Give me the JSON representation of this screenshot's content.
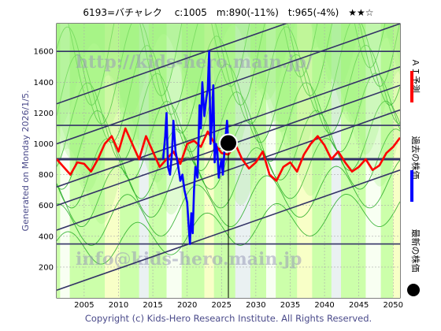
{
  "header": {
    "title": "6193=バチャレク　 c:1005　m:890(-11%)　t:965(-4%)　★★☆"
  },
  "side": {
    "generated": "Generated on Monday 2026/1/5."
  },
  "footer": {
    "copyright": "Copyright (c) Kids-Hero Research Institute. All Rights Reserved."
  },
  "watermark": {
    "top": "http://kids-hero.main.jp/",
    "bottom": "info@kids-hero.main.jp"
  },
  "legend": {
    "ai_label": "ＡＩ予測",
    "past_label": "過去の株価",
    "latest_label": "最新の株価"
  },
  "colors": {
    "ai": "#ff0000",
    "past": "#0000ff",
    "latest": "#000000",
    "band_light": "#ccffaa",
    "band_mid": "#99ee77",
    "band_line": "#22aa22",
    "channel": "#333366"
  },
  "chart_data": {
    "type": "line",
    "title": "6193=バチャレク　 c:1005　m:890(-11%)　t:965(-4%)　★★☆",
    "xlim": [
      2001,
      2051
    ],
    "ylim": [
      0,
      1780
    ],
    "xticks": [
      2005,
      2010,
      2015,
      2020,
      2025,
      2030,
      2035,
      2040,
      2045,
      2050
    ],
    "yticks": [
      200,
      400,
      600,
      800,
      1000,
      1200,
      1400,
      1600
    ],
    "grid": true,
    "current": {
      "x": 2026.0,
      "y": 1005
    },
    "horizontal_levels": [
      350,
      900,
      1120,
      1600
    ],
    "channel_lines": [
      {
        "x": [
          2001,
          2051
        ],
        "y": [
          50,
          830
        ]
      },
      {
        "x": [
          2001,
          2051
        ],
        "y": [
          440,
          1220
        ]
      },
      {
        "x": [
          2001,
          2051
        ],
        "y": [
          600,
          1380
        ]
      },
      {
        "x": [
          2001,
          2051
        ],
        "y": [
          720,
          1500
        ]
      },
      {
        "x": [
          2001,
          2051
        ],
        "y": [
          1000,
          1780
        ]
      },
      {
        "x": [
          2001,
          2051
        ],
        "y": [
          1260,
          2040
        ]
      }
    ],
    "series": [
      {
        "name": "ＡＩ予測",
        "x": [
          2001,
          2002,
          2003,
          2004,
          2005,
          2006,
          2007,
          2008,
          2009,
          2010,
          2011,
          2012,
          2013,
          2014,
          2015,
          2016,
          2017,
          2018,
          2019,
          2020,
          2021,
          2022,
          2023,
          2024,
          2025,
          2026,
          2027,
          2028,
          2029,
          2030,
          2031,
          2032,
          2033,
          2034,
          2035,
          2036,
          2037,
          2038,
          2039,
          2040,
          2041,
          2042,
          2043,
          2044,
          2045,
          2046,
          2047,
          2048,
          2049,
          2050,
          2051
        ],
        "y": [
          900,
          850,
          800,
          880,
          870,
          820,
          900,
          1000,
          1050,
          950,
          1100,
          1000,
          900,
          1050,
          950,
          850,
          900,
          950,
          870,
          1000,
          1020,
          980,
          1080,
          1000,
          940,
          930,
          1000,
          900,
          840,
          880,
          950,
          800,
          760,
          850,
          880,
          820,
          930,
          1000,
          1050,
          990,
          900,
          950,
          880,
          820,
          850,
          900,
          830,
          860,
          940,
          980,
          1040
        ]
      },
      {
        "name": "過去の株価",
        "x": [
          2016.5,
          2016.8,
          2017.0,
          2017.2,
          2017.5,
          2017.8,
          2018.0,
          2018.3,
          2018.6,
          2019.0,
          2019.3,
          2019.6,
          2020.0,
          2020.2,
          2020.4,
          2020.6,
          2020.8,
          2021.0,
          2021.2,
          2021.5,
          2021.8,
          2022.0,
          2022.2,
          2022.5,
          2022.8,
          2023.0,
          2023.2,
          2023.4,
          2023.6,
          2023.8,
          2024.0,
          2024.2,
          2024.4,
          2024.6,
          2024.8,
          2025.0,
          2025.2,
          2025.5,
          2025.8,
          2026.0
        ],
        "y": [
          900,
          1050,
          1200,
          850,
          800,
          950,
          1150,
          950,
          880,
          760,
          800,
          700,
          620,
          480,
          350,
          550,
          420,
          700,
          850,
          780,
          1250,
          1100,
          1400,
          1180,
          1300,
          1350,
          1600,
          1000,
          1150,
          1380,
          880,
          1000,
          950,
          780,
          850,
          900,
          800,
          1000,
          1150,
          1005
        ]
      }
    ]
  }
}
